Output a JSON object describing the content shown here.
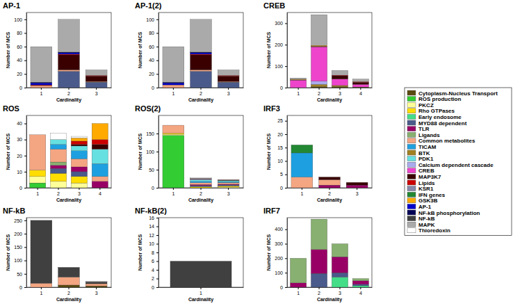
{
  "chart_data": [
    {
      "type": "bar",
      "stacked": true,
      "title": "AP-1",
      "x_label": "Cardinality",
      "y_label": "Number of MCS",
      "categories": [
        1,
        2,
        3
      ],
      "ylim": [
        0,
        110
      ],
      "yticks": [
        0,
        20,
        40,
        60,
        80,
        100
      ],
      "series": [
        {
          "name": "MYD88 dependent",
          "values": [
            0,
            24,
            8
          ]
        },
        {
          "name": "Common metabolites",
          "values": [
            3,
            2,
            1
          ]
        },
        {
          "name": "MAP3K7",
          "values": [
            0,
            22,
            8
          ]
        },
        {
          "name": "Lipids",
          "values": [
            1,
            1,
            1
          ]
        },
        {
          "name": "AP-1",
          "values": [
            3,
            2,
            0
          ]
        },
        {
          "name": "NF-kB phosphorylation",
          "values": [
            1,
            1,
            0
          ]
        },
        {
          "name": "MAPK",
          "values": [
            52,
            48,
            8
          ]
        }
      ]
    },
    {
      "type": "bar",
      "stacked": true,
      "title": "AP-1(2)",
      "x_label": "Cardinality",
      "y_label": "Number of MCS",
      "categories": [
        1,
        2,
        3
      ],
      "ylim": [
        0,
        110
      ],
      "yticks": [
        0,
        20,
        40,
        60,
        80,
        100
      ],
      "series": [
        {
          "name": "MYD88 dependent",
          "values": [
            0,
            24,
            8
          ]
        },
        {
          "name": "Common metabolites",
          "values": [
            4,
            2,
            1
          ]
        },
        {
          "name": "MAP3K7",
          "values": [
            0,
            22,
            8
          ]
        },
        {
          "name": "Lipids",
          "values": [
            0,
            1,
            1
          ]
        },
        {
          "name": "AP-1",
          "values": [
            3,
            2,
            0
          ]
        },
        {
          "name": "NF-kB phosphorylation",
          "values": [
            1,
            1,
            0
          ]
        },
        {
          "name": "MAPK",
          "values": [
            52,
            48,
            8
          ]
        }
      ]
    },
    {
      "type": "bar",
      "stacked": true,
      "title": "CREB",
      "x_label": "Cardinality",
      "y_label": "Number of MCS",
      "categories": [
        1,
        2,
        3,
        4
      ],
      "ylim": [
        0,
        350
      ],
      "yticks": [
        0,
        100,
        200,
        300
      ],
      "series": [
        {
          "name": "Cytoplasm-Nucleus Transport",
          "values": [
            0,
            5,
            5,
            3
          ]
        },
        {
          "name": "BTK",
          "values": [
            0,
            10,
            5,
            0
          ]
        },
        {
          "name": "Calcium dependent cascade",
          "values": [
            0,
            15,
            0,
            0
          ]
        },
        {
          "name": "CREB",
          "values": [
            35,
            160,
            30,
            12
          ]
        },
        {
          "name": "MAP3K7",
          "values": [
            2,
            3,
            15,
            10
          ]
        },
        {
          "name": "Lipids",
          "values": [
            0,
            0,
            3,
            3
          ]
        },
        {
          "name": "GSK3B",
          "values": [
            2,
            4,
            0,
            0
          ]
        },
        {
          "name": "MAPK",
          "values": [
            6,
            143,
            22,
            12
          ]
        }
      ]
    },
    {
      "type": "bar",
      "stacked": true,
      "title": "ROS",
      "x_label": "Cardinality",
      "y_label": "Number of MCS",
      "categories": [
        1,
        2,
        3,
        4
      ],
      "ylim": [
        0,
        45
      ],
      "yticks": [
        0,
        10,
        20,
        30,
        40
      ],
      "series": [
        {
          "name": "ROS production",
          "values": [
            3,
            0,
            0,
            0
          ]
        },
        {
          "name": "PKCZ",
          "values": [
            4,
            4,
            3,
            0
          ]
        },
        {
          "name": "Rho GTPases",
          "values": [
            4,
            5,
            4,
            0
          ]
        },
        {
          "name": "MYD88 dependent",
          "values": [
            0,
            3,
            3,
            0
          ]
        },
        {
          "name": "TLR",
          "values": [
            0,
            2,
            3,
            4
          ]
        },
        {
          "name": "Ligands",
          "values": [
            0,
            2,
            0,
            0
          ]
        },
        {
          "name": "Common metabolites",
          "values": [
            22,
            8,
            5,
            3
          ]
        },
        {
          "name": "TICAM",
          "values": [
            0,
            3,
            5,
            8
          ]
        },
        {
          "name": "PDK1",
          "values": [
            0,
            3,
            3,
            9
          ]
        },
        {
          "name": "MAP3K7",
          "values": [
            0,
            0,
            1,
            3
          ]
        },
        {
          "name": "Lipids",
          "values": [
            0,
            0,
            2,
            3
          ]
        },
        {
          "name": "GSK3B",
          "values": [
            0,
            0,
            2,
            10
          ]
        },
        {
          "name": "Thioredoxin",
          "values": [
            0,
            4,
            1,
            0
          ]
        }
      ]
    },
    {
      "type": "bar",
      "stacked": true,
      "title": "ROS(2)",
      "x_label": "Cardinality",
      "y_label": "Number of MCS",
      "categories": [
        1,
        2,
        3
      ],
      "ylim": [
        0,
        200
      ],
      "yticks": [
        0,
        50,
        100,
        150
      ],
      "series": [
        {
          "name": "ROS production",
          "values": [
            145,
            0,
            0
          ]
        },
        {
          "name": "PKCZ",
          "values": [
            3,
            0,
            2
          ]
        },
        {
          "name": "Rho GTPases",
          "values": [
            3,
            3,
            3
          ]
        },
        {
          "name": "MYD88 dependent",
          "values": [
            0,
            3,
            3
          ]
        },
        {
          "name": "TLR",
          "values": [
            0,
            3,
            2
          ]
        },
        {
          "name": "Common metabolites",
          "values": [
            22,
            5,
            4
          ]
        },
        {
          "name": "TICAM",
          "values": [
            0,
            4,
            3
          ]
        },
        {
          "name": "PDK1",
          "values": [
            0,
            4,
            3
          ]
        },
        {
          "name": "Calcium dependent cascade",
          "values": [
            0,
            2,
            0
          ]
        },
        {
          "name": "MAP3K7",
          "values": [
            0,
            2,
            2
          ]
        },
        {
          "name": "Thioredoxin",
          "values": [
            0,
            2,
            0
          ]
        }
      ]
    },
    {
      "type": "bar",
      "stacked": true,
      "title": "IRF3",
      "x_label": "Cardinality",
      "y_label": "Number of MCS",
      "categories": [
        1,
        2,
        3
      ],
      "ylim": [
        0,
        27
      ],
      "yticks": [
        0,
        5,
        10,
        15,
        20,
        25
      ],
      "series": [
        {
          "name": "TLR",
          "values": [
            0,
            1,
            1
          ]
        },
        {
          "name": "Common metabolites",
          "values": [
            4,
            2,
            0
          ]
        },
        {
          "name": "TICAM",
          "values": [
            9,
            0,
            0
          ]
        },
        {
          "name": "MAP3K7",
          "values": [
            0,
            1,
            1
          ]
        },
        {
          "name": "IFN genes",
          "values": [
            3,
            0,
            0
          ]
        }
      ]
    },
    {
      "type": "bar",
      "stacked": true,
      "title": "NF-kB",
      "x_label": "Cardinality",
      "y_label": "Number of MCS",
      "categories": [
        1,
        2,
        3
      ],
      "ylim": [
        0,
        260
      ],
      "yticks": [
        0,
        50,
        100,
        150,
        200,
        250
      ],
      "series": [
        {
          "name": "Cytoplasm-Nucleus Transport",
          "values": [
            0,
            8,
            5
          ]
        },
        {
          "name": "Common metabolites",
          "values": [
            15,
            30,
            8
          ]
        },
        {
          "name": "NF-kB",
          "values": [
            235,
            35,
            7
          ]
        },
        {
          "name": "MAPK",
          "values": [
            0,
            2,
            2
          ]
        }
      ]
    },
    {
      "type": "bar",
      "stacked": true,
      "title": "NF-kB(2)",
      "x_label": "Cardinality",
      "y_label": "Number of MCS",
      "categories": [
        1
      ],
      "ylim": [
        0,
        16
      ],
      "yticks": [
        0,
        2,
        4,
        6,
        8,
        10,
        12,
        14,
        16
      ],
      "series": [
        {
          "name": "NF-kB",
          "values": [
            6
          ]
        }
      ]
    },
    {
      "type": "bar",
      "stacked": true,
      "title": "IRF7",
      "x_label": "Cardinality",
      "y_label": "Number of MCS",
      "categories": [
        1,
        2,
        3,
        4
      ],
      "ylim": [
        0,
        480
      ],
      "yticks": [
        0,
        100,
        200,
        300,
        400
      ],
      "series": [
        {
          "name": "Early endosome",
          "values": [
            0,
            0,
            70,
            10
          ]
        },
        {
          "name": "MYD88 dependent",
          "values": [
            0,
            95,
            30,
            10
          ]
        },
        {
          "name": "TLR",
          "values": [
            30,
            165,
            110,
            25
          ]
        },
        {
          "name": "Ligands",
          "values": [
            170,
            210,
            90,
            15
          ]
        }
      ]
    }
  ],
  "legend": {
    "items": [
      {
        "name": "Cytoplasm-Nucleus Transport",
        "color": "#5a4a10"
      },
      {
        "name": "ROS production",
        "color": "#33cc33"
      },
      {
        "name": "PKCZ",
        "color": "#ffff99"
      },
      {
        "name": "Rho GTPases",
        "color": "#ffdd00"
      },
      {
        "name": "Early endosome",
        "color": "#44dd88"
      },
      {
        "name": "MYD88 dependent",
        "color": "#4a5a8a"
      },
      {
        "name": "TLR",
        "color": "#990066"
      },
      {
        "name": "Ligands",
        "color": "#88b070"
      },
      {
        "name": "Common metabolites",
        "color": "#f4a582"
      },
      {
        "name": "TICAM",
        "color": "#1ea0e0"
      },
      {
        "name": "BTK",
        "color": "#a08020"
      },
      {
        "name": "PDK1",
        "color": "#66e0e0"
      },
      {
        "name": "Calcium dependent cascade",
        "color": "#aaaaee"
      },
      {
        "name": "CREB",
        "color": "#ee44cc"
      },
      {
        "name": "MAP3K7",
        "color": "#3a0000"
      },
      {
        "name": "Lipids",
        "color": "#cc0000"
      },
      {
        "name": "KSR1",
        "color": "#8888aa"
      },
      {
        "name": "IFN genes",
        "color": "#228833"
      },
      {
        "name": "GSK3B",
        "color": "#ffaa00"
      },
      {
        "name": "AP-1",
        "color": "#0000cc"
      },
      {
        "name": "NF-kB phosphorylation",
        "color": "#000055"
      },
      {
        "name": "NF-kB",
        "color": "#404040"
      },
      {
        "name": "MAPK",
        "color": "#aaaaaa"
      },
      {
        "name": "Thioredoxin",
        "color": "#ffffff"
      }
    ]
  }
}
